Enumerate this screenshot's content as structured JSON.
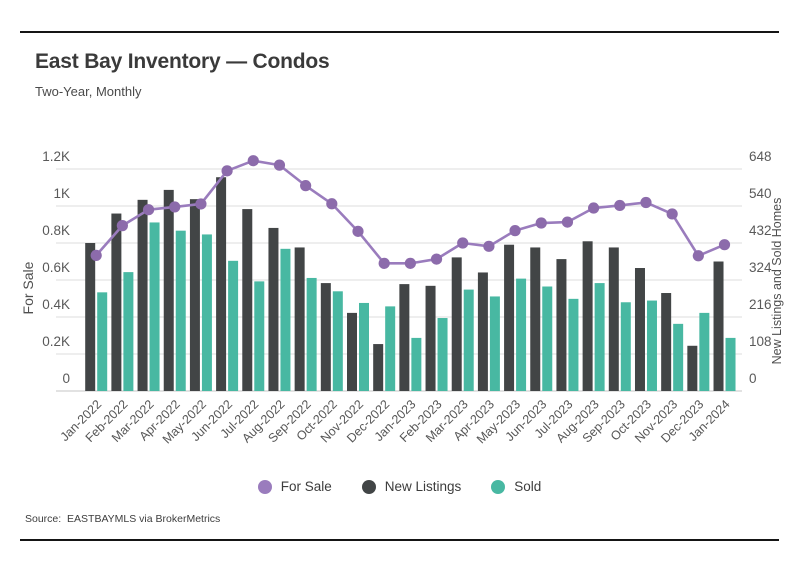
{
  "chart": {
    "title": "East Bay Inventory — Condos",
    "subtitle": "Two-Year, Monthly",
    "source": "Source:  EASTBAYMLS via BrokerMetrics",
    "left_axis_title": "For Sale",
    "right_axis_title": "New Listings and Sold Homes"
  },
  "chart_data": {
    "type": "bar+line",
    "title": "East Bay Inventory — Condos",
    "subtitle": "Two-Year, Monthly",
    "x": [
      "Jan-2022",
      "Feb-2022",
      "Mar-2022",
      "Apr-2022",
      "May-2022",
      "Jun-2022",
      "Jul-2022",
      "Aug-2022",
      "Sep-2022",
      "Oct-2022",
      "Nov-2022",
      "Dec-2022",
      "Jan-2023",
      "Feb-2023",
      "Mar-2023",
      "Apr-2023",
      "May-2023",
      "Jun-2023",
      "Jul-2023",
      "Aug-2023",
      "Sep-2023",
      "Oct-2023",
      "Nov-2023",
      "Dec-2023",
      "Jan-2024"
    ],
    "series": [
      {
        "name": "For Sale",
        "type": "line",
        "axis": "left",
        "color": "#9a7cbd",
        "marker_color": "#8c6bab",
        "values": [
          733,
          894,
          980,
          995,
          1011,
          1190,
          1245,
          1221,
          1110,
          1012,
          863,
          690,
          690,
          713,
          800,
          782,
          867,
          908,
          913,
          989,
          1003,
          1019,
          957,
          731,
          791
        ]
      },
      {
        "name": "New Listings",
        "type": "bar",
        "axis": "right",
        "color": "#424546",
        "values": [
          432,
          518,
          558,
          587,
          560,
          624,
          531,
          476,
          419,
          315,
          228,
          137,
          312,
          307,
          390,
          346,
          427,
          419,
          385,
          437,
          419,
          359,
          286,
          132,
          378
        ]
      },
      {
        "name": "Sold",
        "type": "bar",
        "axis": "right",
        "color": "#48b8a2",
        "values": [
          288,
          347,
          492,
          468,
          457,
          380,
          320,
          415,
          330,
          291,
          257,
          247,
          155,
          213,
          296,
          276,
          328,
          305,
          269,
          315,
          259,
          264,
          196,
          228,
          155
        ]
      }
    ],
    "left_axis": {
      "title": "For Sale",
      "tick_labels": [
        "0",
        "0.2K",
        "0.4K",
        "0.6K",
        "0.8K",
        "1K",
        "1.2K"
      ],
      "tick_values": [
        0,
        200,
        400,
        600,
        800,
        1000,
        1200
      ]
    },
    "right_axis": {
      "title": "New Listings and Sold Homes",
      "tick_labels": [
        "0",
        "108",
        "216",
        "324",
        "432",
        "540",
        "648"
      ],
      "tick_values": [
        0,
        108,
        216,
        324,
        432,
        540,
        648
      ]
    },
    "grid": true,
    "legend_position": "bottom",
    "colors": {
      "grid": "#dcdcdc",
      "axis_line": "#c6c6c6",
      "tick_text": "#595959",
      "x_label_text": "#565656"
    }
  }
}
